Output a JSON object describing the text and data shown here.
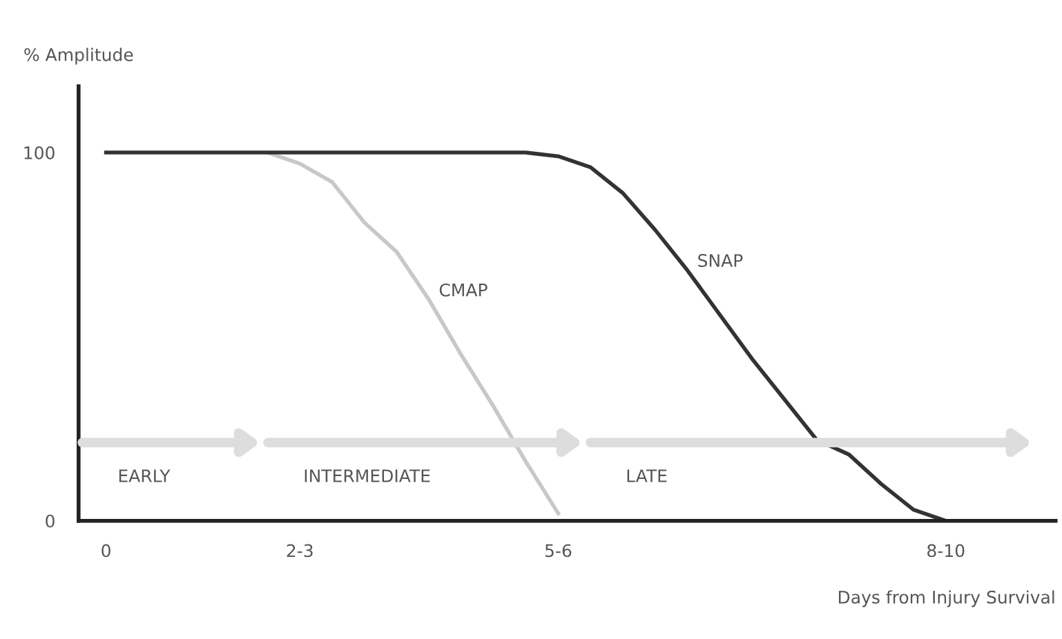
{
  "chart_data": {
    "type": "line",
    "xlabel": "Days from Injury Survival",
    "ylabel": "% Amplitude",
    "categories": [
      "0",
      null,
      null,
      null,
      null,
      null,
      "2-3",
      null,
      null,
      null,
      null,
      null,
      null,
      null,
      "5-6",
      null,
      null,
      null,
      null,
      null,
      null,
      null,
      null,
      null,
      null,
      null,
      "8-10",
      null,
      null,
      null
    ],
    "ylim": [
      0,
      118
    ],
    "yticks": [
      0,
      100
    ],
    "series": [
      {
        "name": "CMAP",
        "color": "#c8c8c8",
        "values": [
          null,
          null,
          null,
          null,
          null,
          100,
          97,
          92,
          81,
          73,
          60,
          45,
          31,
          16,
          2,
          null,
          null,
          null,
          null,
          null,
          null,
          null,
          null,
          null,
          null,
          null,
          null,
          null,
          null,
          null
        ]
      },
      {
        "name": "SNAP",
        "color": "#333333",
        "values": [
          100,
          100,
          100,
          100,
          100,
          100,
          100,
          100,
          100,
          100,
          100,
          100,
          100,
          100,
          99,
          96,
          89,
          79,
          68,
          56,
          44,
          33,
          22,
          18,
          10,
          3,
          0,
          null,
          null,
          null
        ]
      }
    ],
    "annotations": [
      "EARLY",
      "INTERMEDIATE",
      "LATE"
    ],
    "grid": false,
    "legend": false,
    "marker": "none",
    "line_style": "solid"
  }
}
